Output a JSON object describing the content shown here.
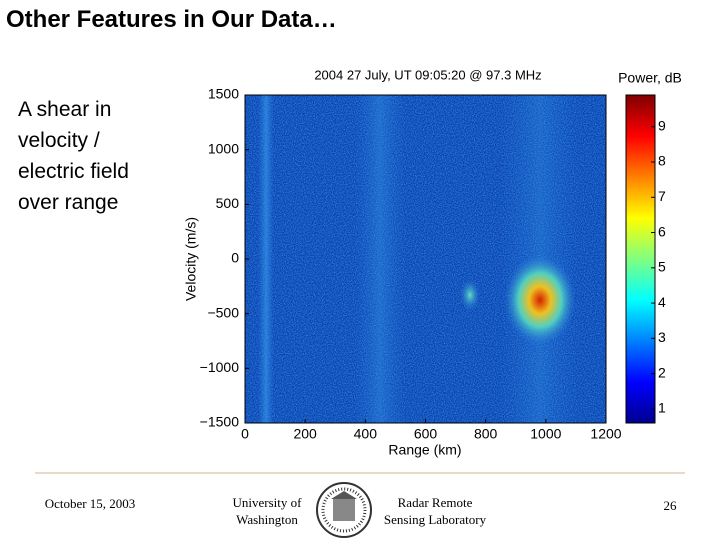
{
  "title": "Other Features in Our Data…",
  "body_lines": [
    "A shear in",
    "velocity /",
    "electric field",
    "over range"
  ],
  "footer": {
    "date": "October 15, 2003",
    "university": [
      "University of",
      "Washington"
    ],
    "lab": [
      "Radar Remote",
      "Sensing Laboratory"
    ],
    "page": 26
  },
  "chart_data": {
    "type": "heatmap",
    "title": "2004 27 July, UT 09:05:20 @ 97.3 MHz",
    "xlabel": "Range (km)",
    "ylabel": "Velocity (m/s)",
    "xlim": [
      0,
      1200
    ],
    "xticks": [
      0,
      200,
      400,
      600,
      800,
      1000,
      1200
    ],
    "ylim": [
      -1500,
      1500
    ],
    "yticks": [
      {
        "value": -1500,
        "label": "−1500"
      },
      {
        "value": -1000,
        "label": "−1000"
      },
      {
        "value": -500,
        "label": "−500"
      },
      0,
      500,
      1000,
      1500
    ],
    "colorbar": {
      "label": "Power, dB",
      "colormap": "jet",
      "lim": [
        0.6,
        9.9
      ],
      "ticks": [
        1,
        2,
        3,
        4,
        5,
        6,
        7,
        8,
        9
      ]
    }
  }
}
